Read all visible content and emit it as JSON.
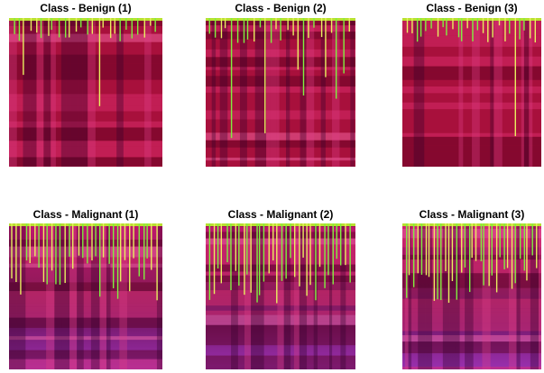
{
  "panels": [
    {
      "title": "Class - Benign (1)"
    },
    {
      "title": "Class - Benign (2)"
    },
    {
      "title": "Class - Benign (3)"
    },
    {
      "title": "Class - Malignant (1)"
    },
    {
      "title": "Class - Malignant (2)"
    },
    {
      "title": "Class - Malignant (3)"
    }
  ]
}
